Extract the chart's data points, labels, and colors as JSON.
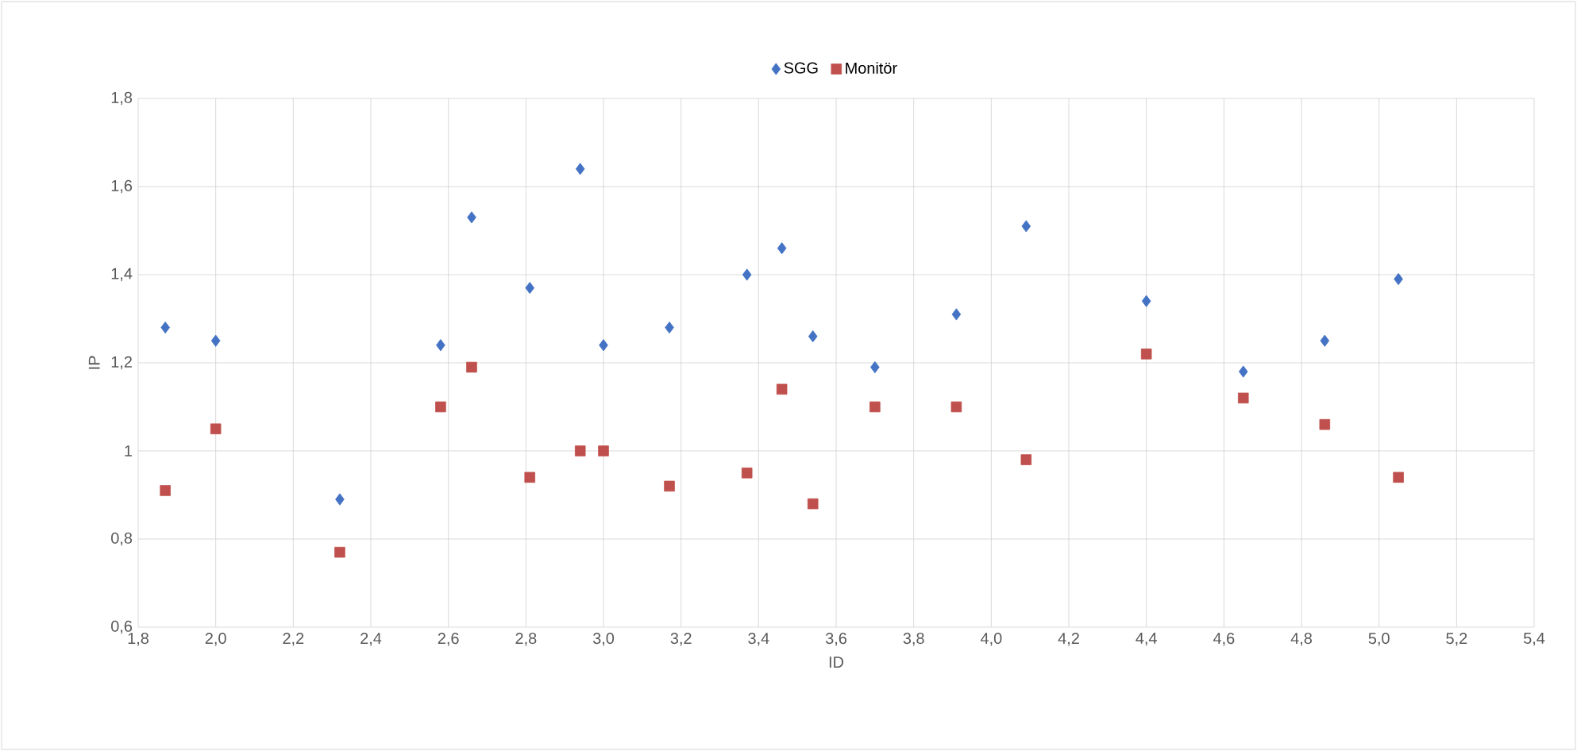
{
  "chart_data": {
    "type": "scatter",
    "xlabel": "ID",
    "ylabel": "IP",
    "x": [
      1.87,
      2.0,
      2.32,
      2.58,
      2.66,
      2.81,
      2.94,
      3.0,
      3.17,
      3.37,
      3.46,
      3.54,
      3.7,
      3.91,
      4.09,
      4.4,
      4.65,
      4.86,
      5.05
    ],
    "series": [
      {
        "name": "SGG",
        "color": "#4472c4",
        "marker": "diamond",
        "values": [
          1.28,
          1.25,
          0.89,
          1.24,
          1.53,
          1.37,
          1.64,
          1.24,
          1.28,
          1.4,
          1.46,
          1.26,
          1.19,
          1.31,
          1.51,
          1.34,
          1.18,
          1.25,
          1.39
        ]
      },
      {
        "name": "Monitör",
        "color": "#c0504d",
        "marker": "square",
        "values": [
          0.91,
          1.05,
          0.77,
          1.1,
          1.19,
          0.94,
          1.0,
          1.0,
          0.92,
          0.95,
          1.14,
          0.88,
          1.1,
          1.1,
          0.98,
          1.22,
          1.12,
          1.06,
          0.94
        ]
      }
    ],
    "xlim": [
      1.8,
      5.4
    ],
    "xticks": [
      {
        "value": 1.8,
        "label": "1,8"
      },
      {
        "value": 2.0,
        "label": "2,0"
      },
      {
        "value": 2.2,
        "label": "2,2"
      },
      {
        "value": 2.4,
        "label": "2,4"
      },
      {
        "value": 2.6,
        "label": "2,6"
      },
      {
        "value": 2.8,
        "label": "2,8"
      },
      {
        "value": 3.0,
        "label": "3,0"
      },
      {
        "value": 3.2,
        "label": "3,2"
      },
      {
        "value": 3.4,
        "label": "3,4"
      },
      {
        "value": 3.6,
        "label": "3,6"
      },
      {
        "value": 3.8,
        "label": "3,8"
      },
      {
        "value": 4.0,
        "label": "4,0"
      },
      {
        "value": 4.2,
        "label": "4,2"
      },
      {
        "value": 4.4,
        "label": "4,4"
      },
      {
        "value": 4.6,
        "label": "4,6"
      },
      {
        "value": 4.8,
        "label": "4,8"
      },
      {
        "value": 5.0,
        "label": "5,0"
      },
      {
        "value": 5.2,
        "label": "5,2"
      },
      {
        "value": 5.4,
        "label": "5,4"
      }
    ],
    "ylim": [
      0.6,
      1.8
    ],
    "yticks": [
      {
        "value": 0.6,
        "label": "0,6"
      },
      {
        "value": 0.8,
        "label": "0,8"
      },
      1,
      {
        "value": 1.2,
        "label": "1,2"
      },
      {
        "value": 1.4,
        "label": "1,4"
      },
      {
        "value": 1.6,
        "label": "1,6"
      },
      {
        "value": 1.8,
        "label": "1,8"
      }
    ],
    "grid": true,
    "legend": "top"
  }
}
